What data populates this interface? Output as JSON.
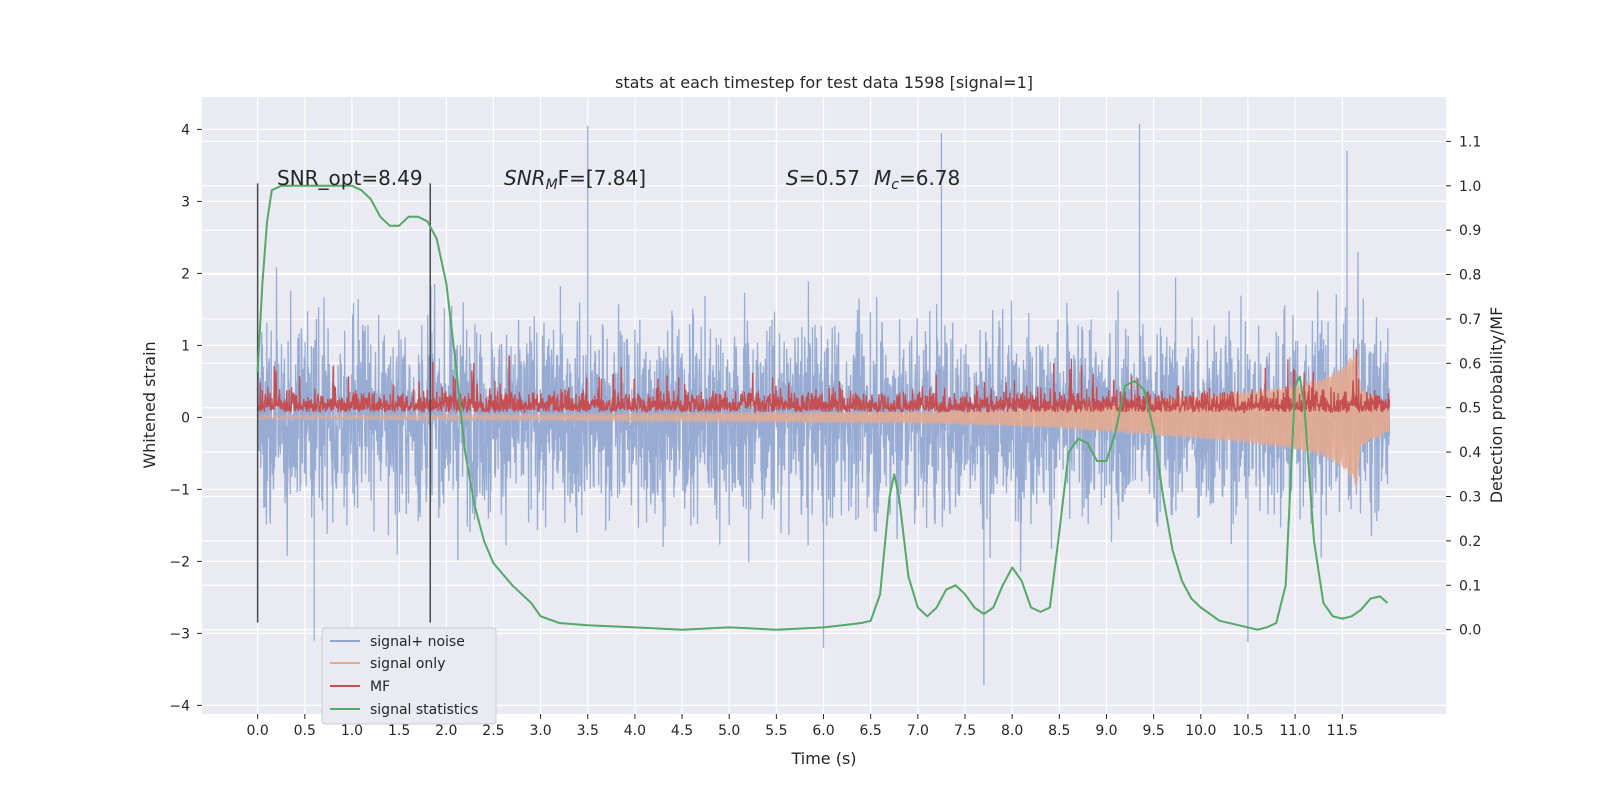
{
  "chart_data": {
    "type": "line",
    "title": "stats at each timestep for test data 1598 [signal=1]",
    "xlabel": "Time (s)",
    "ylabel": "Whitened strain",
    "y2label": "Detection probability/MF",
    "xlim": [
      -0.59,
      12.6
    ],
    "ylim": [
      -4.12,
      4.45
    ],
    "y2lim": [
      -0.19,
      1.2
    ],
    "x_ticks": [
      0.0,
      0.5,
      1.0,
      1.5,
      2.0,
      2.5,
      3.0,
      3.5,
      4.0,
      4.5,
      5.0,
      5.5,
      6.0,
      6.5,
      7.0,
      7.5,
      8.0,
      8.5,
      9.0,
      9.5,
      10.0,
      10.5,
      11.0,
      11.5
    ],
    "x_tick_labels": [
      "0.0",
      "0.5",
      "1.0",
      "1.5",
      "2.0",
      "2.5",
      "3.0",
      "3.5",
      "4.0",
      "4.5",
      "5.0",
      "5.5",
      "6.0",
      "6.5",
      "7.0",
      "7.5",
      "8.0",
      "8.5",
      "9.0",
      "9.5",
      "10.0",
      "10.5",
      "11.0",
      "11.5"
    ],
    "y_ticks": [
      -4,
      -3,
      -2,
      -1,
      0,
      1,
      2,
      3,
      4
    ],
    "y_tick_labels": [
      "−4",
      "−3",
      "−2",
      "−1",
      "0",
      "1",
      "2",
      "3",
      "4"
    ],
    "y2_ticks": [
      0.0,
      0.1,
      0.2,
      0.3,
      0.4,
      0.5,
      0.6,
      0.7,
      0.8,
      0.9,
      1.0,
      1.1
    ],
    "y2_tick_labels": [
      "0.0",
      "0.1",
      "0.2",
      "0.3",
      "0.4",
      "0.5",
      "0.6",
      "0.7",
      "0.8",
      "0.9",
      "1.0",
      "1.1"
    ],
    "grid": true,
    "legend_position": "lower-left",
    "annotations": {
      "snr_opt": "SNR_opt=8.49",
      "snr_mf_main": "SNR",
      "snr_mf_sub": "M",
      "snr_mf_rest": "F=[7.84]",
      "s_sym": "S",
      "s_val": "=0.57",
      "mc_sym": "M",
      "mc_sub": "c",
      "mc_val": "=6.78"
    },
    "vertical_lines": [
      {
        "x": 0.0,
        "y_range": [
          -2.85,
          3.25
        ]
      },
      {
        "x": 1.83,
        "y_range": [
          -2.85,
          3.25
        ]
      }
    ],
    "series": [
      {
        "name": "signal+ noise",
        "color": "#8fa5cf",
        "axis": "left",
        "x_range": [
          0.0,
          12.0
        ],
        "band_core": [
          -1.4,
          1.4
        ],
        "band_typical": [
          -2.1,
          2.1
        ],
        "peak_extremes": [
          {
            "x": 3.5,
            "y": 4.05
          },
          {
            "x": 7.25,
            "y": 3.95
          },
          {
            "x": 9.35,
            "y": 4.08
          },
          {
            "x": 11.55,
            "y": 3.7
          },
          {
            "x": 7.7,
            "y": -3.72
          },
          {
            "x": 6.0,
            "y": -3.2
          },
          {
            "x": 0.6,
            "y": -3.1
          },
          {
            "x": 10.5,
            "y": -3.12
          }
        ]
      },
      {
        "name": "signal only",
        "color": "#e8a98c",
        "axis": "left",
        "x": [
          0.0,
          1.0,
          2.0,
          3.0,
          4.0,
          5.0,
          6.0,
          7.0,
          7.5,
          8.0,
          8.5,
          9.0,
          9.5,
          10.0,
          10.5,
          11.0,
          11.3,
          11.5,
          11.6,
          11.65,
          11.7,
          12.0
        ],
        "envelope": [
          0.03,
          0.03,
          0.04,
          0.04,
          0.05,
          0.06,
          0.07,
          0.08,
          0.1,
          0.12,
          0.15,
          0.2,
          0.25,
          0.3,
          0.36,
          0.45,
          0.55,
          0.7,
          0.85,
          1.0,
          0.4,
          0.2
        ]
      },
      {
        "name": "MF",
        "color": "#c44e52",
        "axis": "right",
        "baseline": 0.5,
        "amplitude": 0.03,
        "x_range": [
          0.0,
          12.0
        ],
        "spike": {
          "x": 11.65,
          "y": 0.63
        }
      },
      {
        "name": "signal statistics",
        "color": "#55a868",
        "axis": "right",
        "x": [
          0.0,
          0.05,
          0.1,
          0.15,
          0.25,
          0.4,
          0.6,
          0.8,
          1.0,
          1.1,
          1.2,
          1.3,
          1.4,
          1.5,
          1.6,
          1.7,
          1.8,
          1.9,
          2.0,
          2.1,
          2.2,
          2.3,
          2.4,
          2.5,
          2.7,
          2.9,
          3.0,
          3.2,
          3.5,
          4.0,
          4.5,
          5.0,
          5.5,
          6.0,
          6.2,
          6.4,
          6.5,
          6.6,
          6.7,
          6.75,
          6.8,
          6.9,
          7.0,
          7.1,
          7.2,
          7.3,
          7.4,
          7.5,
          7.6,
          7.7,
          7.8,
          7.9,
          8.0,
          8.1,
          8.2,
          8.3,
          8.4,
          8.5,
          8.6,
          8.7,
          8.8,
          8.9,
          9.0,
          9.1,
          9.2,
          9.3,
          9.4,
          9.5,
          9.6,
          9.7,
          9.8,
          9.9,
          10.0,
          10.2,
          10.4,
          10.6,
          10.7,
          10.8,
          10.9,
          11.0,
          11.05,
          11.1,
          11.2,
          11.3,
          11.4,
          11.5,
          11.6,
          11.7,
          11.8,
          11.9,
          11.98
        ],
        "y": [
          0.58,
          0.78,
          0.92,
          0.99,
          1.0,
          1.0,
          1.0,
          1.0,
          1.0,
          0.99,
          0.97,
          0.93,
          0.91,
          0.91,
          0.93,
          0.93,
          0.92,
          0.88,
          0.78,
          0.6,
          0.4,
          0.28,
          0.2,
          0.15,
          0.1,
          0.06,
          0.03,
          0.015,
          0.01,
          0.005,
          0.0,
          0.005,
          0.0,
          0.005,
          0.01,
          0.015,
          0.02,
          0.08,
          0.3,
          0.35,
          0.3,
          0.12,
          0.05,
          0.03,
          0.05,
          0.09,
          0.1,
          0.08,
          0.05,
          0.035,
          0.05,
          0.1,
          0.14,
          0.11,
          0.05,
          0.04,
          0.05,
          0.22,
          0.4,
          0.43,
          0.42,
          0.38,
          0.38,
          0.45,
          0.55,
          0.56,
          0.54,
          0.45,
          0.3,
          0.18,
          0.11,
          0.07,
          0.05,
          0.02,
          0.01,
          0.0,
          0.005,
          0.015,
          0.1,
          0.55,
          0.57,
          0.5,
          0.2,
          0.06,
          0.03,
          0.025,
          0.03,
          0.045,
          0.07,
          0.075,
          0.06
        ]
      }
    ]
  }
}
